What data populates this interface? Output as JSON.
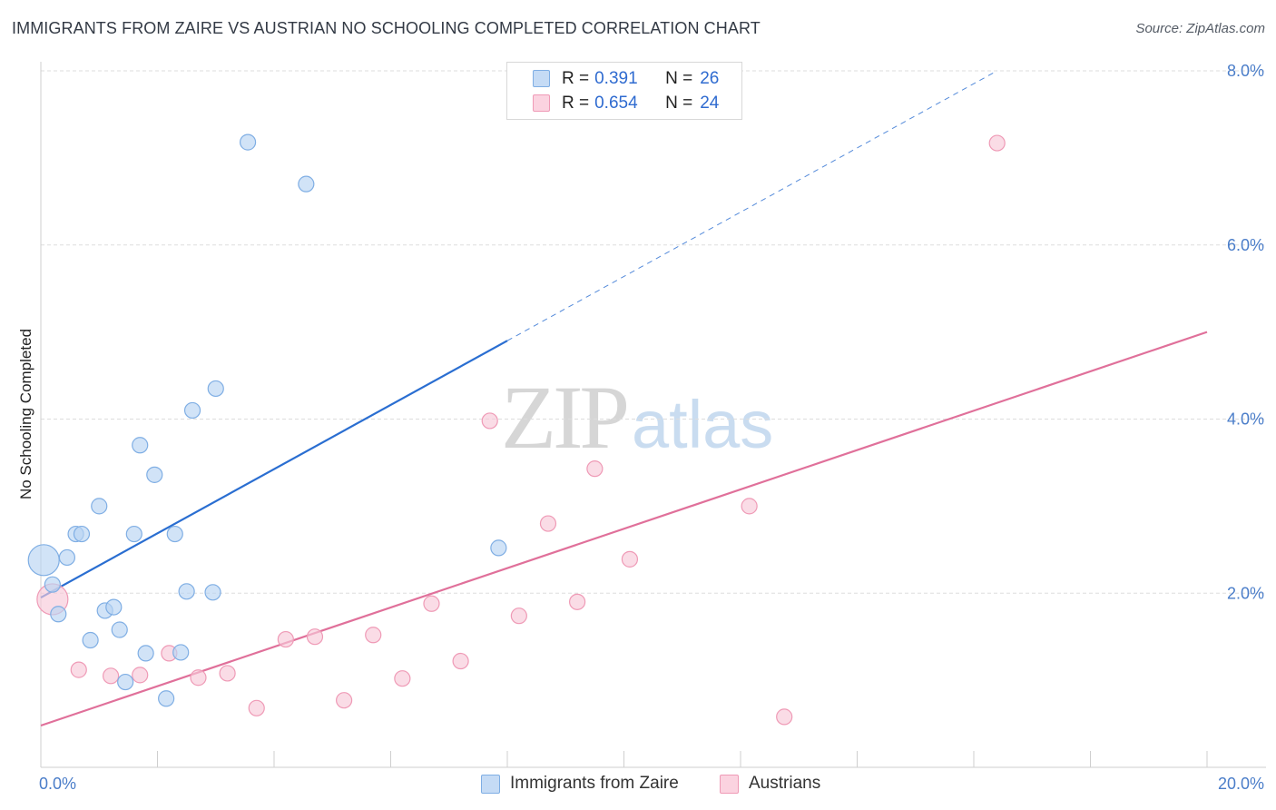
{
  "title": "IMMIGRANTS FROM ZAIRE VS AUSTRIAN NO SCHOOLING COMPLETED CORRELATION CHART",
  "source": "Source: ZipAtlas.com",
  "watermark": {
    "zip": "ZIP",
    "atlas": "atlas"
  },
  "legend": {
    "rows": [
      {
        "r_label": "R =",
        "r_value": "0.391",
        "n_label": "N =",
        "n_value": "26"
      },
      {
        "r_label": "R =",
        "r_value": "0.654",
        "n_label": "N =",
        "n_value": "24"
      }
    ]
  },
  "bottom_legend": {
    "series1": "Immigrants from Zaire",
    "series2": "Austrians"
  },
  "colors": {
    "blue_fill": "#b9d4f3",
    "blue_stroke": "#7faee4",
    "blue_line": "#2a6ed1",
    "pink_fill": "#f8c9d8",
    "pink_stroke": "#ef9ab6",
    "pink_line": "#e0709a",
    "tick_label": "#4a7dc9",
    "grid": "#dddddd"
  },
  "chart_data": {
    "type": "scatter",
    "title": "IMMIGRANTS FROM ZAIRE VS AUSTRIAN NO SCHOOLING COMPLETED CORRELATION CHART",
    "xlabel": "",
    "ylabel": "No Schooling Completed",
    "xlim": [
      0,
      20
    ],
    "ylim": [
      0,
      8
    ],
    "x_tick_labels": [
      "0.0%",
      "20.0%"
    ],
    "y_ticks": [
      2,
      4,
      6,
      8
    ],
    "y_tick_labels": [
      "2.0%",
      "4.0%",
      "6.0%",
      "8.0%"
    ],
    "grid": true,
    "legend_position": "top-center",
    "series": [
      {
        "name": "Immigrants from Zaire",
        "color": "#b9d4f3",
        "points": [
          {
            "x": 0.05,
            "y": 2.38,
            "big": true
          },
          {
            "x": 0.2,
            "y": 2.1
          },
          {
            "x": 0.3,
            "y": 1.76
          },
          {
            "x": 0.45,
            "y": 2.41
          },
          {
            "x": 0.6,
            "y": 2.68
          },
          {
            "x": 0.7,
            "y": 2.68
          },
          {
            "x": 0.85,
            "y": 1.46
          },
          {
            "x": 1.0,
            "y": 3.0
          },
          {
            "x": 1.1,
            "y": 1.8
          },
          {
            "x": 1.25,
            "y": 1.84
          },
          {
            "x": 1.35,
            "y": 1.58
          },
          {
            "x": 1.45,
            "y": 0.98
          },
          {
            "x": 1.6,
            "y": 2.68
          },
          {
            "x": 1.7,
            "y": 3.7
          },
          {
            "x": 1.8,
            "y": 1.31
          },
          {
            "x": 1.95,
            "y": 3.36
          },
          {
            "x": 2.15,
            "y": 0.79
          },
          {
            "x": 2.3,
            "y": 2.68
          },
          {
            "x": 2.4,
            "y": 1.32
          },
          {
            "x": 2.5,
            "y": 2.02
          },
          {
            "x": 2.6,
            "y": 4.1
          },
          {
            "x": 2.95,
            "y": 2.01
          },
          {
            "x": 3.0,
            "y": 4.35
          },
          {
            "x": 3.55,
            "y": 7.18
          },
          {
            "x": 4.55,
            "y": 6.7
          },
          {
            "x": 7.85,
            "y": 2.52
          }
        ],
        "trend": {
          "x0": 0.0,
          "y0": 1.95,
          "x1": 8.0,
          "y1": 4.9,
          "dashed_x1": 16.4,
          "dashed_y1": 8.0
        }
      },
      {
        "name": "Austrians",
        "color": "#f8c9d8",
        "points": [
          {
            "x": 0.2,
            "y": 1.93,
            "big": true
          },
          {
            "x": 0.65,
            "y": 1.12
          },
          {
            "x": 1.2,
            "y": 1.05
          },
          {
            "x": 1.7,
            "y": 1.06
          },
          {
            "x": 2.2,
            "y": 1.31
          },
          {
            "x": 2.7,
            "y": 1.03
          },
          {
            "x": 3.2,
            "y": 1.08
          },
          {
            "x": 3.7,
            "y": 0.68
          },
          {
            "x": 4.2,
            "y": 1.47
          },
          {
            "x": 4.7,
            "y": 1.5
          },
          {
            "x": 5.2,
            "y": 0.77
          },
          {
            "x": 5.7,
            "y": 1.52
          },
          {
            "x": 6.2,
            "y": 1.02
          },
          {
            "x": 6.7,
            "y": 1.88
          },
          {
            "x": 7.2,
            "y": 1.22
          },
          {
            "x": 7.7,
            "y": 3.98
          },
          {
            "x": 8.2,
            "y": 1.74
          },
          {
            "x": 8.7,
            "y": 2.8
          },
          {
            "x": 9.2,
            "y": 1.9
          },
          {
            "x": 9.5,
            "y": 3.43
          },
          {
            "x": 10.1,
            "y": 2.39
          },
          {
            "x": 12.15,
            "y": 3.0
          },
          {
            "x": 12.75,
            "y": 0.58
          },
          {
            "x": 16.4,
            "y": 7.17
          }
        ],
        "trend": {
          "x0": 0.0,
          "y0": 0.48,
          "x1": 20.0,
          "y1": 5.0
        }
      }
    ]
  }
}
